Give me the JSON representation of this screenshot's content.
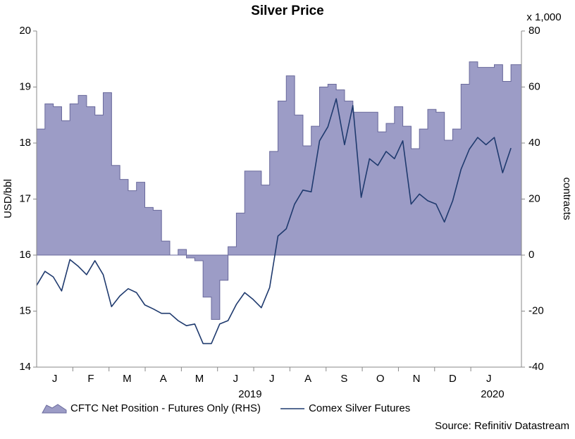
{
  "chart_data": {
    "type": "line",
    "title": "Silver Price",
    "ylabel": "USD/bbl",
    "y2label": "contracts",
    "y2unit": "x 1,000",
    "source": "Source: Refinitiv Datastream",
    "xlim": [
      0,
      13.4
    ],
    "xticks": [
      {
        "value": 0.5,
        "label": "J"
      },
      {
        "value": 1.5,
        "label": "F"
      },
      {
        "value": 2.5,
        "label": "M"
      },
      {
        "value": 3.5,
        "label": "A"
      },
      {
        "value": 4.5,
        "label": "M"
      },
      {
        "value": 5.5,
        "label": "J"
      },
      {
        "value": 6.5,
        "label": "J"
      },
      {
        "value": 7.5,
        "label": "A"
      },
      {
        "value": 8.5,
        "label": "S"
      },
      {
        "value": 9.5,
        "label": "O"
      },
      {
        "value": 10.5,
        "label": "N"
      },
      {
        "value": 11.5,
        "label": "D"
      },
      {
        "value": 12.5,
        "label": "J"
      }
    ],
    "year_labels": [
      {
        "value": 5.9,
        "label": "2019"
      },
      {
        "value": 12.6,
        "label": "2020"
      }
    ],
    "ylim": [
      14,
      20
    ],
    "yticks": [
      14,
      15,
      16,
      17,
      18,
      19,
      20
    ],
    "y2lim": [
      -40,
      80
    ],
    "y2ticks": [
      -40,
      -20,
      0,
      20,
      40,
      60,
      80
    ],
    "x": [
      0,
      0.23,
      0.46,
      0.69,
      0.92,
      1.15,
      1.38,
      1.61,
      1.84,
      2.07,
      2.3,
      2.53,
      2.76,
      2.99,
      3.22,
      3.45,
      3.68,
      3.91,
      4.14,
      4.37,
      4.6,
      4.83,
      5.06,
      5.29,
      5.52,
      5.75,
      5.98,
      6.21,
      6.44,
      6.67,
      6.9,
      7.13,
      7.36,
      7.59,
      7.82,
      8.05,
      8.28,
      8.51,
      8.74,
      8.97,
      9.2,
      9.43,
      9.66,
      9.89,
      10.12,
      10.35,
      10.58,
      10.81,
      11.04,
      11.27,
      11.5,
      11.73,
      11.96,
      12.19,
      12.42,
      12.65,
      12.88,
      13.11
    ],
    "series": [
      {
        "name": "CFTC Net Position - Futures Only (RHS)",
        "type": "step_area",
        "axis": "y2",
        "color": "#9c9cc6",
        "edge_color": "#6a6a9c",
        "values": [
          45,
          54,
          53,
          48,
          54,
          57,
          53,
          50,
          58,
          32,
          27,
          23,
          26,
          17,
          16,
          5,
          0,
          2,
          -1,
          -2,
          -15,
          -23,
          -9,
          3,
          15,
          30,
          30,
          25,
          37,
          55,
          64,
          50,
          39,
          46,
          60,
          61,
          59,
          55,
          51,
          51,
          51,
          44,
          47,
          53,
          46,
          38,
          45,
          52,
          51,
          41,
          45,
          61,
          69,
          67,
          67,
          68,
          62,
          68
        ]
      },
      {
        "name": "Comex Silver Futures",
        "type": "line",
        "color": "#1f3a6e",
        "values": [
          15.46,
          15.71,
          15.61,
          15.36,
          15.92,
          15.8,
          15.65,
          15.9,
          15.65,
          15.08,
          15.27,
          15.4,
          15.33,
          15.11,
          15.04,
          14.96,
          14.96,
          14.83,
          14.74,
          14.77,
          14.42,
          14.42,
          14.77,
          14.83,
          15.12,
          15.33,
          15.21,
          15.06,
          15.42,
          16.34,
          16.47,
          16.91,
          17.16,
          17.13,
          18.04,
          18.29,
          18.79,
          17.97,
          18.67,
          17.03,
          17.72,
          17.6,
          17.85,
          17.72,
          18.04,
          16.91,
          17.09,
          16.97,
          16.91,
          16.59,
          16.97,
          17.53,
          17.89,
          18.1,
          17.97,
          18.1,
          17.47,
          17.91
        ]
      }
    ]
  }
}
